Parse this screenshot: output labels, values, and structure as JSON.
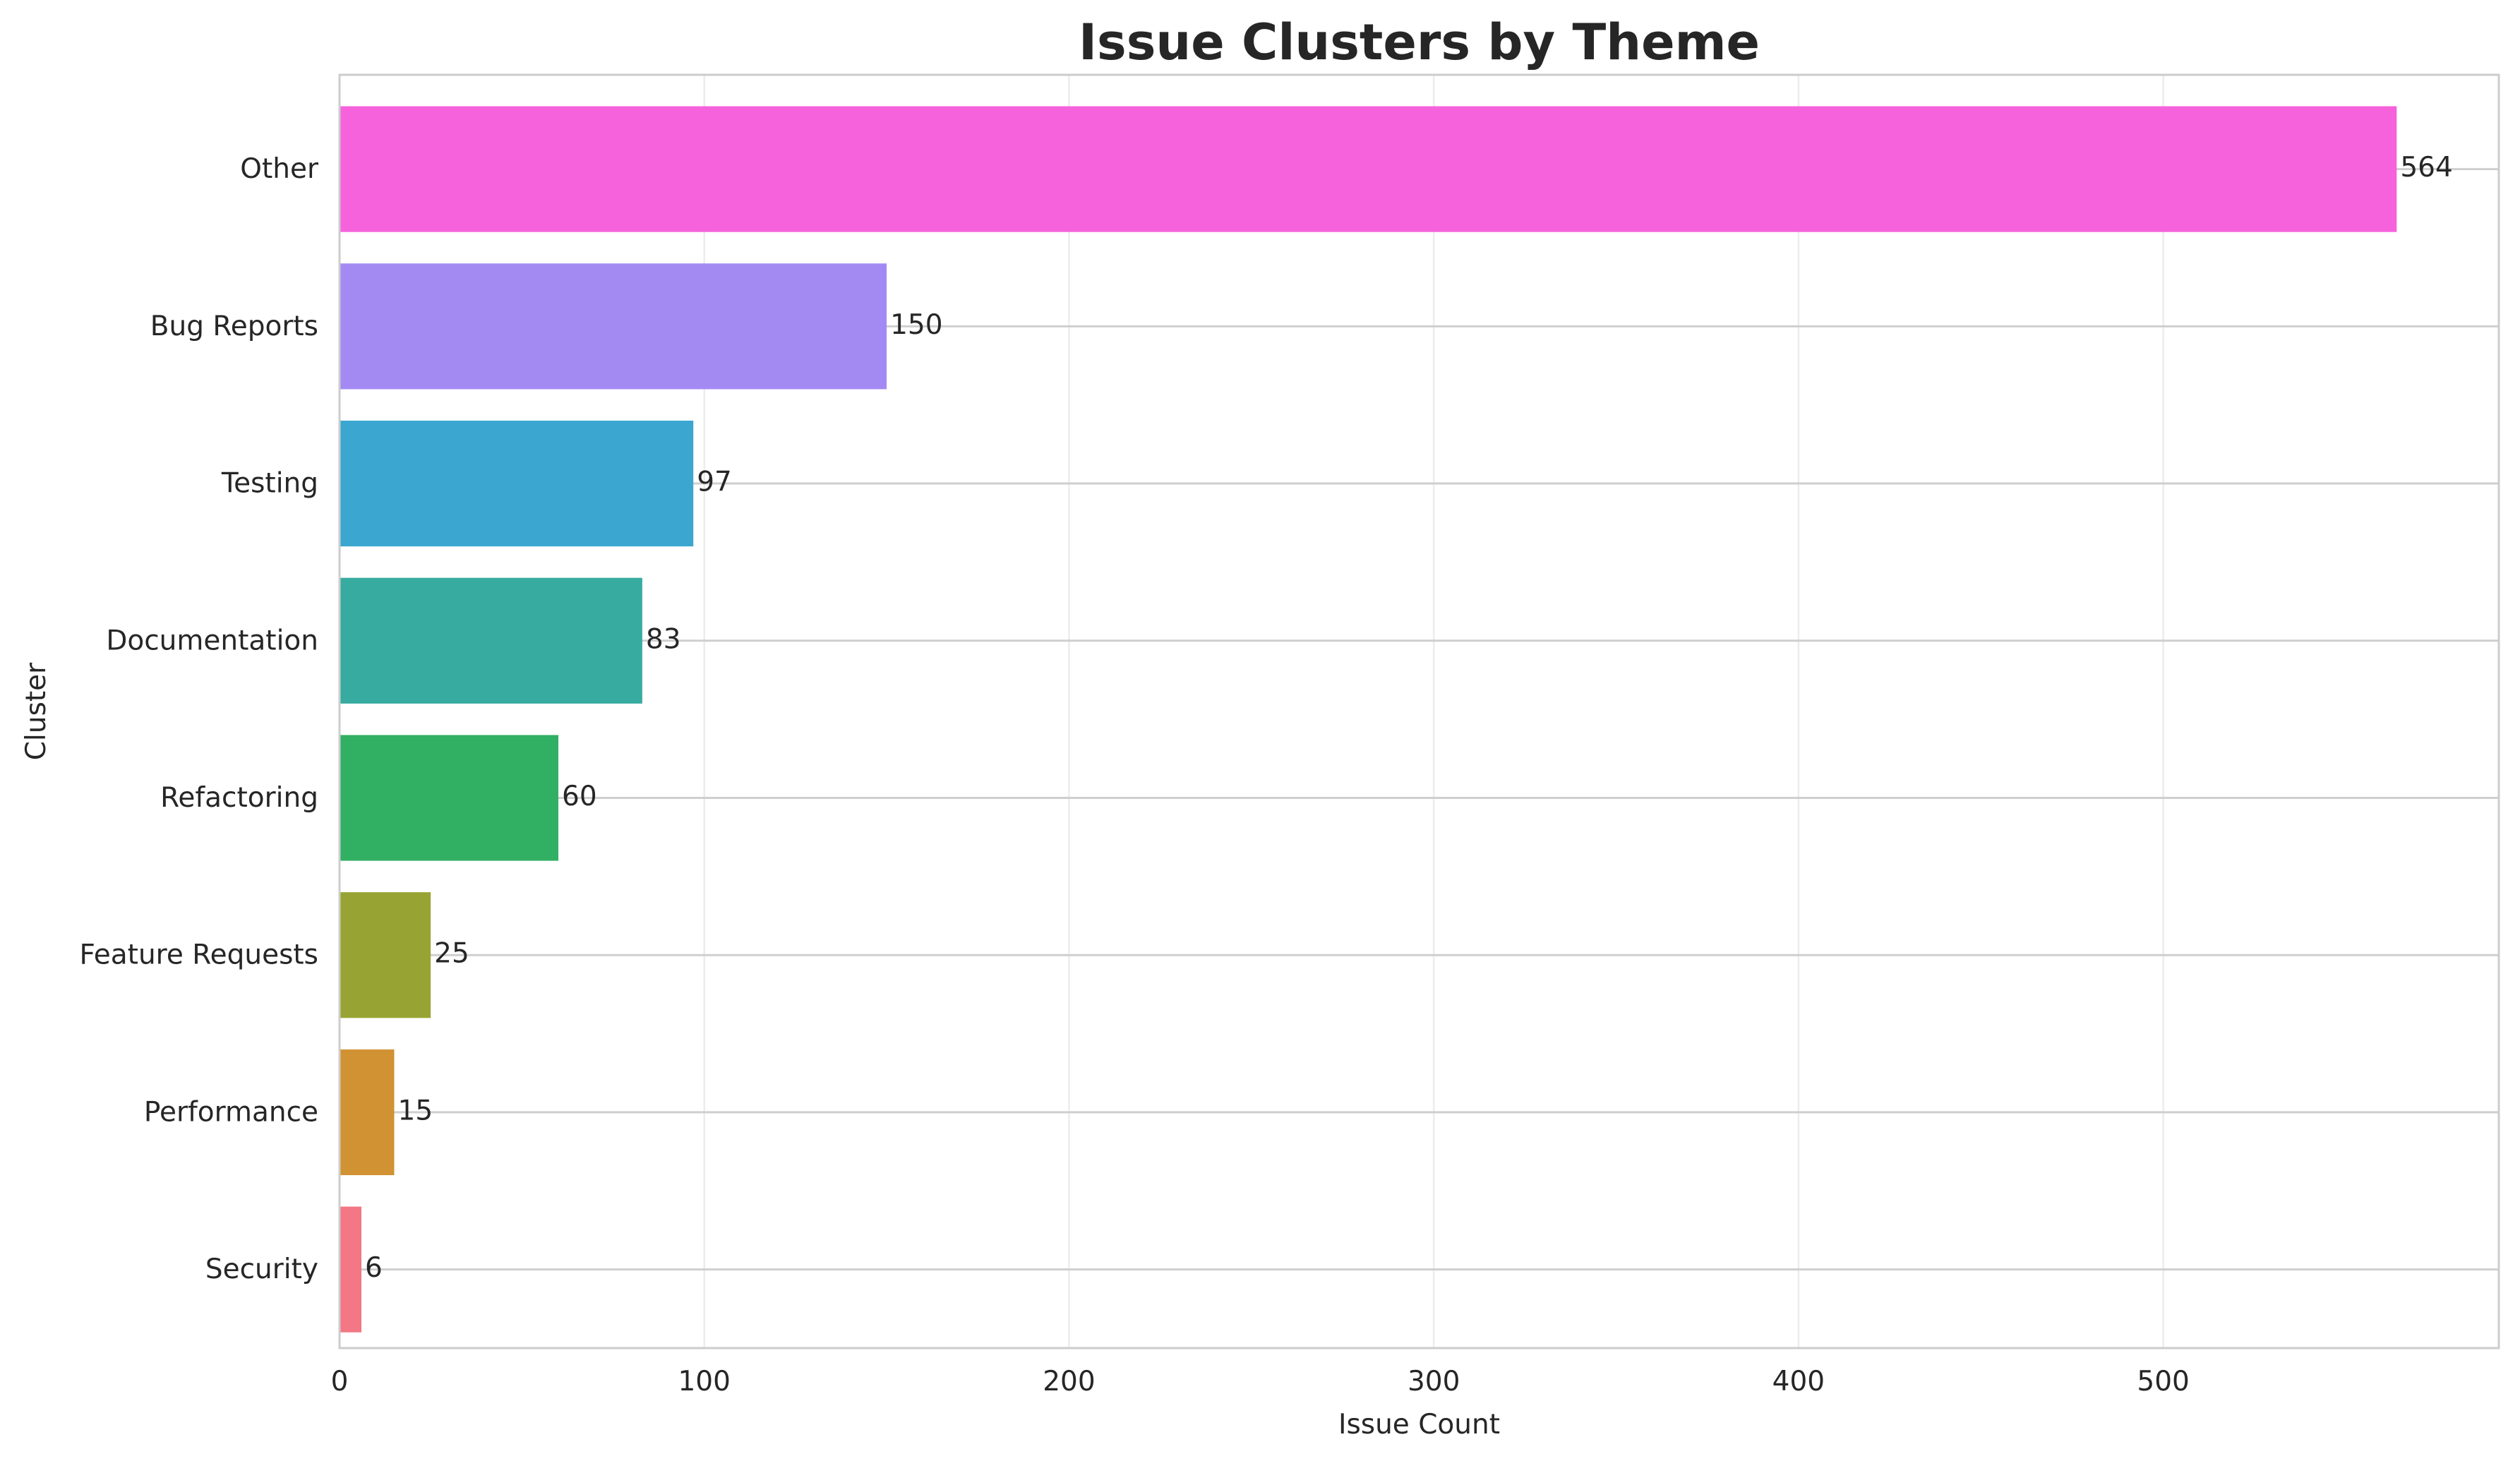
{
  "chart_data": {
    "type": "bar",
    "orientation": "horizontal",
    "title": "Issue Clusters by Theme",
    "xlabel": "Issue Count",
    "ylabel": "Cluster",
    "categories": [
      "Other",
      "Bug Reports",
      "Testing",
      "Documentation",
      "Refactoring",
      "Feature Requests",
      "Performance",
      "Security"
    ],
    "values": [
      564,
      150,
      97,
      83,
      60,
      25,
      15,
      6
    ],
    "colors": [
      "#f562dc",
      "#a38af3",
      "#3ba6d0",
      "#37ab9f",
      "#31af63",
      "#97a433",
      "#d19234",
      "#f37784"
    ],
    "xlim": [
      0,
      592
    ],
    "xticks": [
      0,
      100,
      200,
      300,
      400,
      500
    ],
    "grid": true,
    "data_labels": true
  }
}
